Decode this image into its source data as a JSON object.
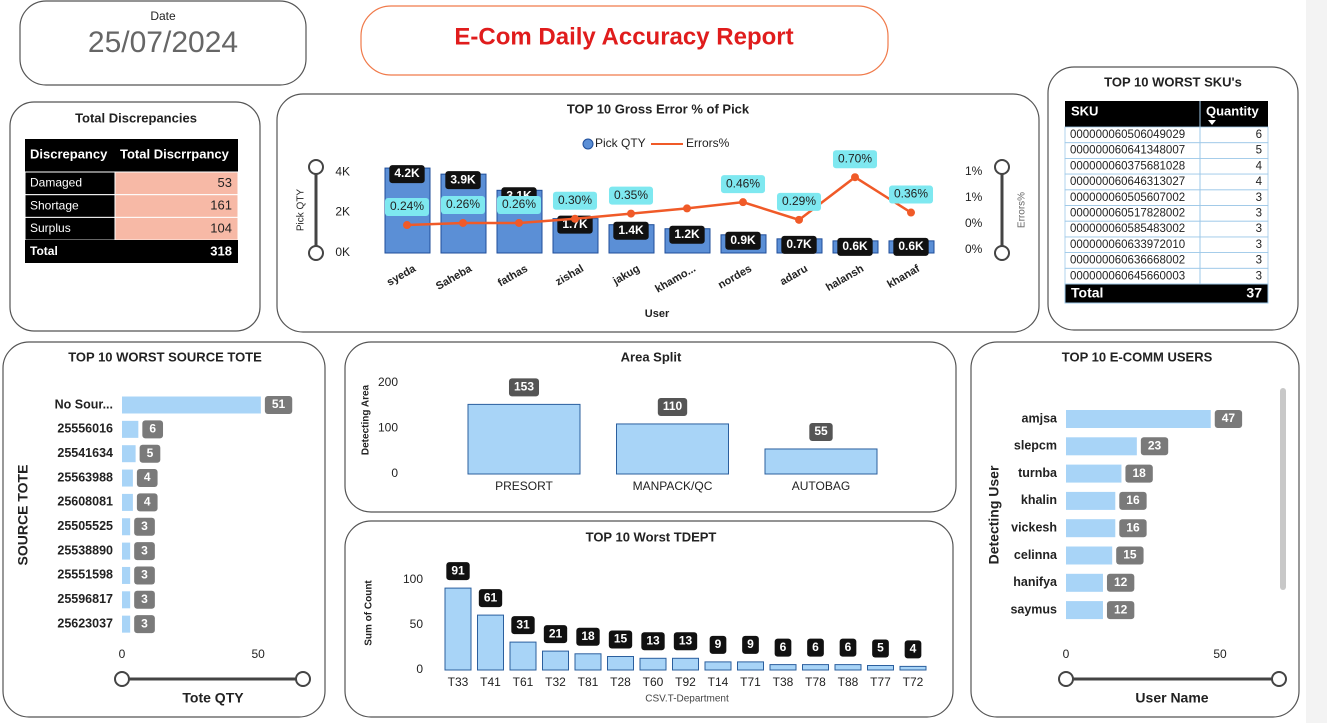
{
  "header": {
    "date_label": "Date",
    "date": "25/07/2024",
    "title": "E-Com Daily Accuracy Report"
  },
  "discrepancies": {
    "title": "Total Discrepancies",
    "columns": [
      "Discrepancy",
      "Total Discrrpancy"
    ],
    "rows": [
      [
        "Damaged",
        53
      ],
      [
        "Shortage",
        161
      ],
      [
        "Surplus",
        104
      ]
    ],
    "total": [
      "Total",
      318
    ]
  },
  "sku": {
    "title": "TOP 10 WORST SKU's",
    "columns": [
      "SKU",
      "Quantity"
    ],
    "rows": [
      [
        "000000060506049029",
        6
      ],
      [
        "000000060641348007",
        5
      ],
      [
        "000000060375681028",
        4
      ],
      [
        "000000060646313027",
        4
      ],
      [
        "000000060505607002",
        3
      ],
      [
        "000000060517828002",
        3
      ],
      [
        "000000060585483002",
        3
      ],
      [
        "000000060633972010",
        3
      ],
      [
        "000000060636668002",
        3
      ],
      [
        "000000060645660003",
        3
      ]
    ],
    "total": [
      "Total",
      37
    ]
  },
  "chart_data": [
    {
      "type": "combo",
      "title": "TOP 10 Gross Error % of Pick",
      "x_label": "User",
      "y_label": "Pick QTY",
      "y2_label": "Errors%",
      "categories": [
        "syeda",
        "Saheba",
        "fathas",
        "zishal",
        "jakug",
        "khamo...",
        "nordes",
        "adaru",
        "halansh",
        "khanaf"
      ],
      "series": [
        {
          "name": "Pick QTY",
          "color": "#5b8fd6",
          "values": [
            4200,
            3900,
            3100,
            1700,
            1400,
            1200,
            900,
            700,
            600,
            600
          ],
          "value_labels": [
            "4.2K",
            "3.9K",
            "3.1K",
            "1.7K",
            "1.4K",
            "1.2K",
            "0.9K",
            "0.7K",
            "0.6K",
            "0.6K"
          ]
        },
        {
          "name": "Errors%",
          "color": "#f05a28",
          "axis": "y2",
          "values": [
            0.24,
            0.26,
            0.26,
            0.3,
            0.35,
            0.4,
            0.46,
            0.29,
            0.7,
            0.36
          ],
          "value_labels": [
            "0.24%",
            "0.26%",
            "0.26%",
            "0.30%",
            "0.35%",
            null,
            "0.46%",
            "0.29%",
            "0.70%",
            "0.36%"
          ]
        }
      ],
      "ylim": [
        0,
        4500
      ],
      "yticks": [
        {
          "value": 0,
          "label": "0K"
        },
        {
          "value": 2000,
          "label": "2K"
        },
        {
          "value": 4000,
          "label": "4K"
        }
      ],
      "y2lim": [
        0,
        0.75
      ],
      "y2ticks": [
        {
          "value": 0,
          "label": "0%"
        },
        {
          "value": 0.25,
          "label": "0%"
        },
        {
          "value": 0.5,
          "label": "1%"
        },
        {
          "value": 0.75,
          "label": "1%"
        }
      ],
      "legend": "top"
    },
    {
      "type": "hbar",
      "title": "TOP 10 WORST SOURCE TOTE",
      "x_label": "Tote QTY",
      "y_label": "SOURCE TOTE",
      "color": "#a8d4f7",
      "categories": [
        "No Sour...",
        "25556016",
        "25541634",
        "25563988",
        "25608081",
        "25505525",
        "25538890",
        "25551598",
        "25596817",
        "25623037"
      ],
      "values": [
        51,
        6,
        5,
        4,
        4,
        3,
        3,
        3,
        3,
        3
      ],
      "xlim": [
        0,
        65
      ],
      "xticks": [
        0,
        50
      ]
    },
    {
      "type": "bar",
      "title": "Area Split",
      "y_label": "Detecting Area",
      "color": "#a8d4f7",
      "categories": [
        "PRESORT",
        "MANPACK/QC",
        "AUTOBAG"
      ],
      "values": [
        153,
        110,
        55
      ],
      "ylim": [
        0,
        200
      ],
      "yticks": [
        0,
        100,
        200
      ]
    },
    {
      "type": "bar",
      "title": "TOP 10 Worst TDEPT",
      "x_label": "CSV.T-Department",
      "y_label": "Sum of Count",
      "color": "#a8d4f7",
      "categories": [
        "T33",
        "T41",
        "T61",
        "T32",
        "T81",
        "T28",
        "T60",
        "T92",
        "T14",
        "T71",
        "T38",
        "T78",
        "T88",
        "T77",
        "T72"
      ],
      "values": [
        91,
        61,
        31,
        21,
        18,
        15,
        13,
        13,
        9,
        9,
        6,
        6,
        6,
        5,
        4
      ],
      "ylim": [
        0,
        100
      ],
      "yticks": [
        0,
        50,
        100
      ]
    },
    {
      "type": "hbar",
      "title": "TOP 10 E-COMM USERS",
      "x_label": "User Name",
      "y_label": "Detecting User",
      "color": "#a8d4f7",
      "categories": [
        "amjsa",
        "slepcm",
        "turnba",
        "khalin",
        "vickesh",
        "celinna",
        "hanifya",
        "saymus"
      ],
      "values": [
        47,
        23,
        18,
        16,
        16,
        15,
        12,
        12
      ],
      "xlim": [
        0,
        70
      ],
      "xticks": [
        0,
        50
      ]
    }
  ]
}
